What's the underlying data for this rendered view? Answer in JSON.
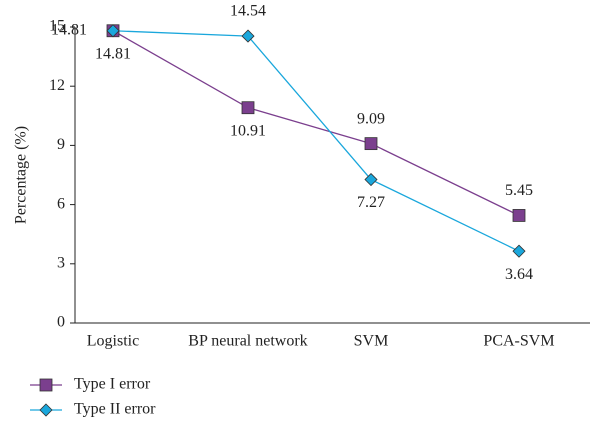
{
  "chart_data": {
    "type": "line",
    "categories": [
      "Logistic",
      "BP neural network",
      "SVM",
      "PCA-SVM"
    ],
    "ylabel": "Percentage (%)",
    "ylim": [
      0,
      15
    ],
    "yticks": [
      0,
      3,
      6,
      9,
      12,
      15
    ],
    "legend": "bottom-left",
    "series": [
      {
        "name": "Type I error",
        "color": "#7b3f8e",
        "marker": "square",
        "values": [
          14.81,
          10.91,
          9.09,
          5.45
        ]
      },
      {
        "name": "Type II error",
        "color": "#1aa7dc",
        "marker": "diamond",
        "values": [
          14.81,
          14.54,
          7.27,
          3.64
        ]
      }
    ]
  }
}
